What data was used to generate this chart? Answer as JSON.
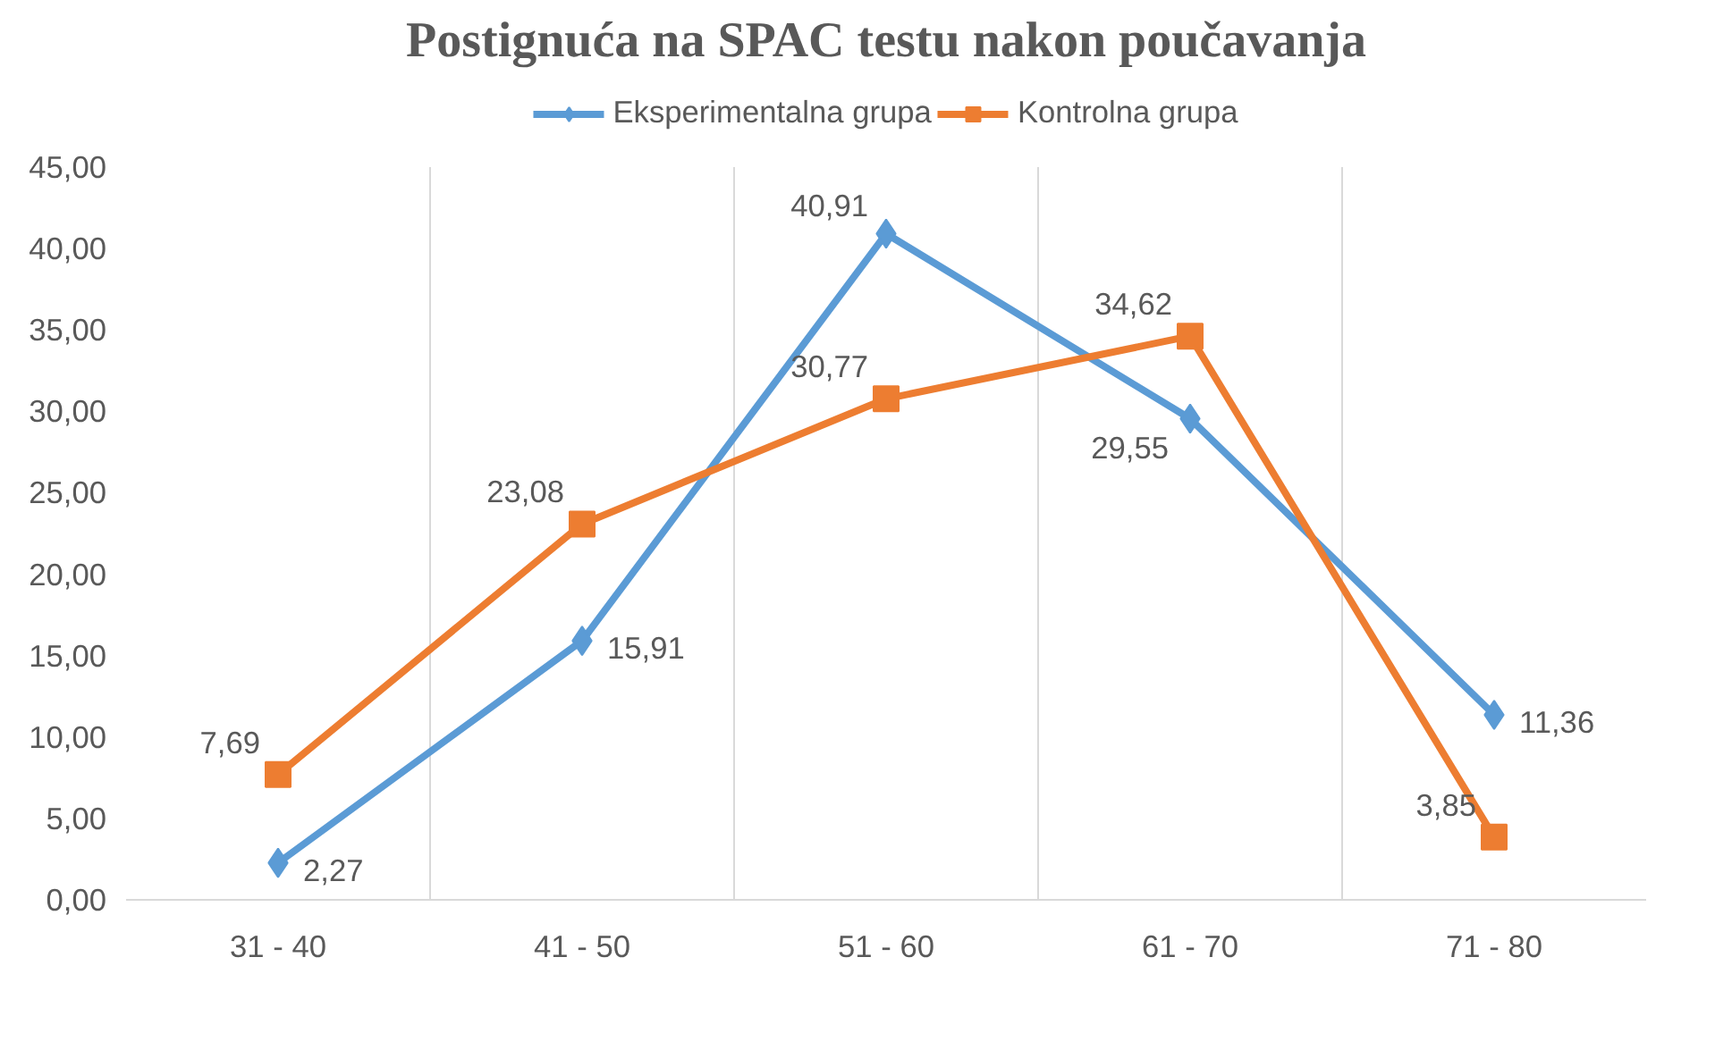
{
  "chart_data": {
    "type": "line",
    "title": "Postignuća na SPAC testu nakon poučavanja",
    "categories": [
      "31 - 40",
      "41 - 50",
      "51 - 60",
      "61 - 70",
      "71 - 80"
    ],
    "series": [
      {
        "name": "Eksperimentalna grupa",
        "color": "#5b9bd5",
        "marker": "diamond",
        "values": [
          2.27,
          15.91,
          40.91,
          29.55,
          11.36
        ],
        "value_labels": [
          "2,27",
          "15,91",
          "40,91",
          "29,55",
          "11,36"
        ]
      },
      {
        "name": "Kontrolna grupa",
        "color": "#ed7d31",
        "marker": "square",
        "values": [
          7.69,
          23.08,
          30.77,
          34.62,
          3.85
        ],
        "value_labels": [
          "7,69",
          "23,08",
          "30,77",
          "34,62",
          "3,85"
        ]
      }
    ],
    "ylim": [
      0,
      45
    ],
    "yticks": [
      {
        "value": 0,
        "label": "0,00"
      },
      {
        "value": 5,
        "label": "5,00"
      },
      {
        "value": 10,
        "label": "10,00"
      },
      {
        "value": 15,
        "label": "15,00"
      },
      {
        "value": 20,
        "label": "20,00"
      },
      {
        "value": 25,
        "label": "25,00"
      },
      {
        "value": 30,
        "label": "30,00"
      },
      {
        "value": 35,
        "label": "35,00"
      },
      {
        "value": 40,
        "label": "40,00"
      },
      {
        "value": 45,
        "label": "45,00"
      }
    ],
    "grid": "x",
    "legend": "top",
    "line_style": "solid"
  }
}
